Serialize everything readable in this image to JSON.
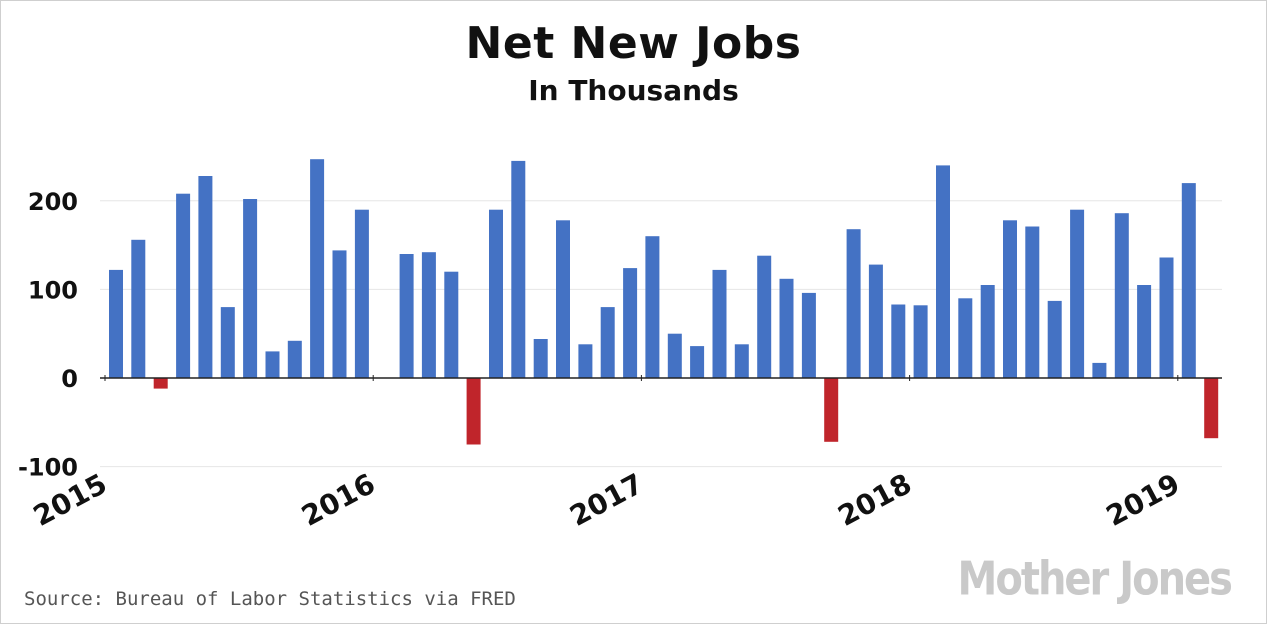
{
  "chart_data": {
    "type": "bar",
    "title": "Net New Jobs",
    "subtitle": "In Thousands",
    "y_ticks": [
      "200",
      "100",
      "0",
      "-100"
    ],
    "y_tick_values": [
      200,
      100,
      0,
      -100
    ],
    "ylim": [
      -100,
      260
    ],
    "x_tick_labels": [
      "2015",
      "2016",
      "2017",
      "2018",
      "2019"
    ],
    "x_tick_indices": [
      0,
      12,
      24,
      36,
      48
    ],
    "positive_color": "#4472c4",
    "negative_color": "#c0252b",
    "grid": true,
    "values": [
      122,
      156,
      -12,
      208,
      228,
      80,
      202,
      30,
      42,
      247,
      144,
      190,
      null,
      140,
      142,
      120,
      -75,
      190,
      245,
      44,
      178,
      38,
      80,
      124,
      160,
      50,
      36,
      122,
      38,
      138,
      112,
      96,
      -72,
      168,
      128,
      83,
      82,
      240,
      90,
      105,
      178,
      171,
      87,
      190,
      17,
      186,
      105,
      136,
      220,
      -68
    ]
  },
  "source": "Source: Bureau of Labor Statistics via FRED",
  "brand": "Mother Jones"
}
